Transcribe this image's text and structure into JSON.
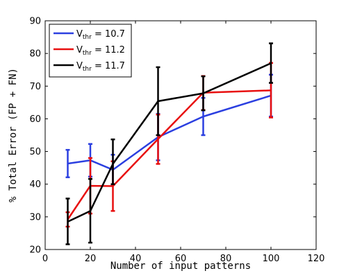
{
  "chart_data": {
    "type": "line",
    "xlabel": "Number of input patterns",
    "ylabel": "% Total Error (FP + FN)",
    "xlim": [
      0,
      120
    ],
    "ylim": [
      20,
      90
    ],
    "xticks": [
      0,
      20,
      40,
      60,
      80,
      100,
      120
    ],
    "yticks": [
      20,
      30,
      40,
      50,
      60,
      70,
      80,
      90
    ],
    "grid": false,
    "legend_position": "top-left",
    "x": [
      10,
      20,
      30,
      50,
      70,
      100
    ],
    "series": [
      {
        "name_main": "V",
        "name_sub": "thr",
        "name_value": " = 10.7",
        "color": "#2b3fe0",
        "values": [
          46.3,
          47.3,
          44.4,
          54.4,
          60.7,
          67.1
        ],
        "err_low": [
          42.1,
          42.3,
          39.8,
          47.3,
          55.0,
          60.7
        ],
        "err_high": [
          50.5,
          52.3,
          49.0,
          61.5,
          66.4,
          73.5
        ]
      },
      {
        "name_main": "V",
        "name_sub": "thr",
        "name_value": " = 11.2",
        "color": "#e80f0f",
        "values": [
          29.2,
          39.5,
          39.4,
          53.8,
          68.0,
          68.7
        ],
        "err_low": [
          27.0,
          31.0,
          31.8,
          46.2,
          62.7,
          60.4
        ],
        "err_high": [
          31.4,
          48.0,
          47.0,
          61.3,
          73.1,
          77.1
        ]
      },
      {
        "name_main": "V",
        "name_sub": "thr",
        "name_value": " = 11.7",
        "color": "#000000",
        "values": [
          28.5,
          31.8,
          46.2,
          65.4,
          67.8,
          77.0
        ],
        "err_low": [
          21.6,
          22.1,
          40.0,
          55.0,
          62.6,
          71.0
        ],
        "err_high": [
          35.6,
          41.6,
          53.7,
          75.8,
          73.0,
          83.1
        ]
      }
    ]
  }
}
